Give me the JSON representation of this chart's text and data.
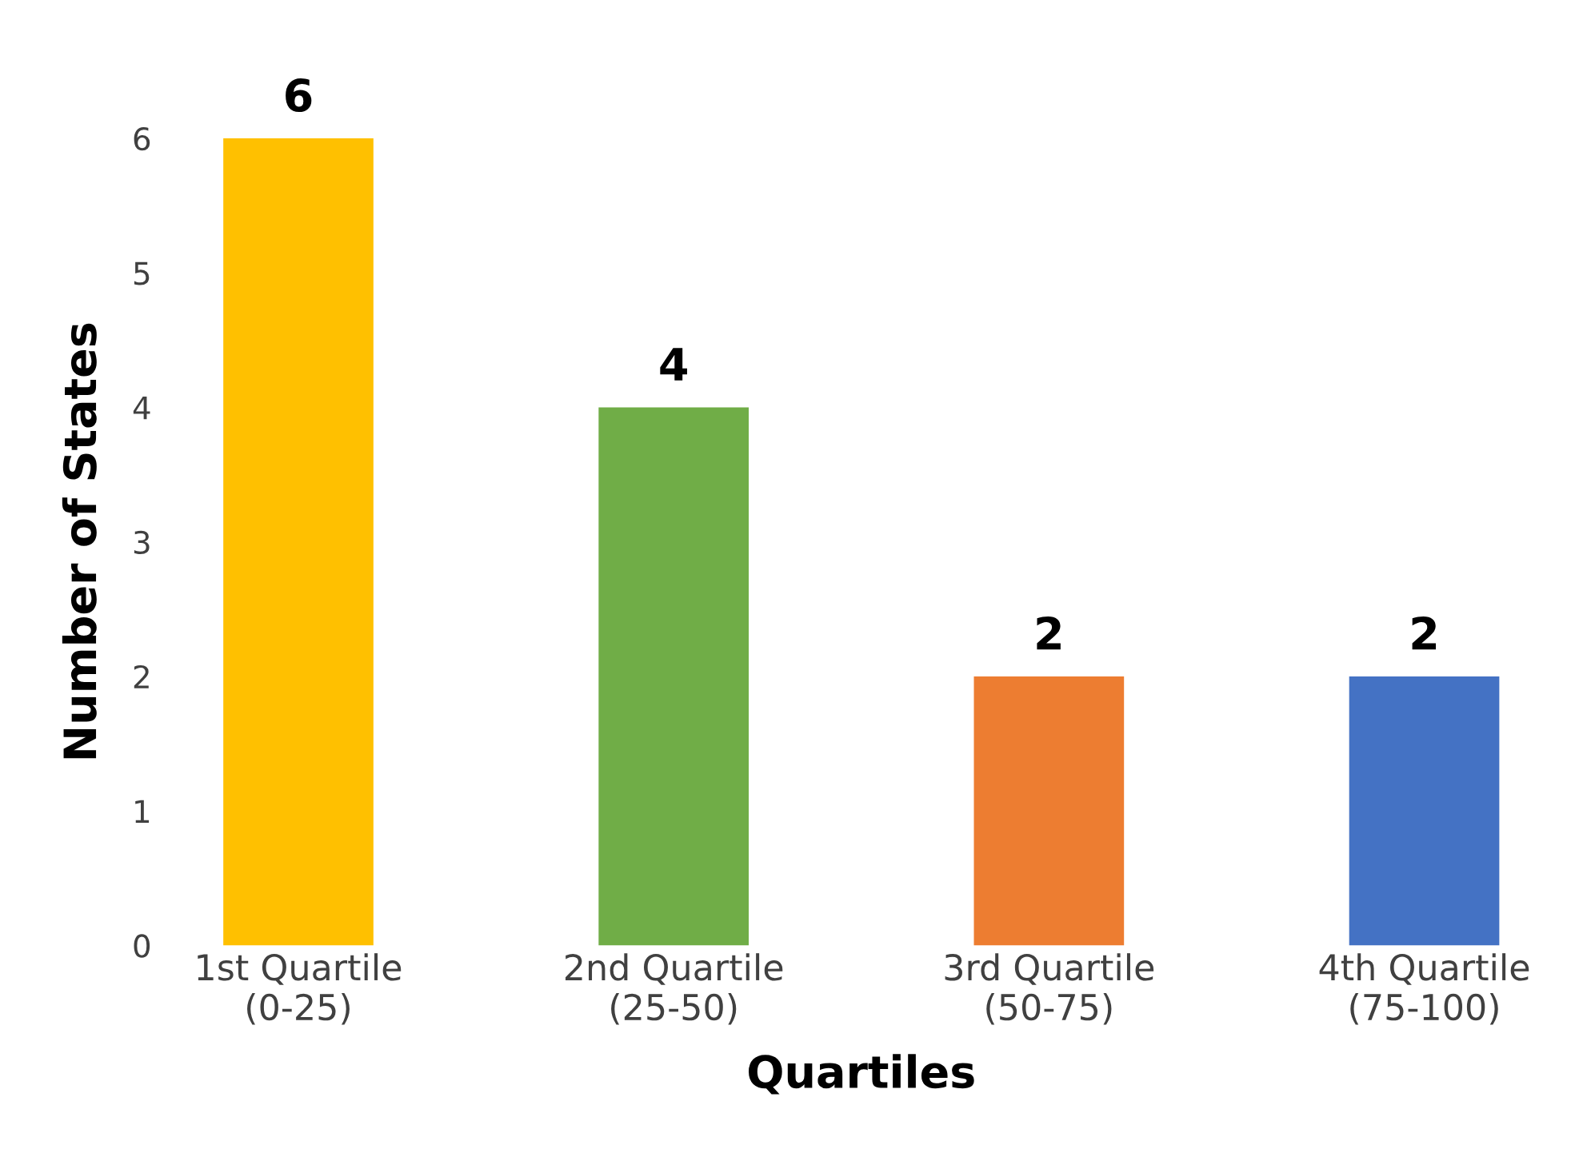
{
  "chart_data": {
    "type": "bar",
    "xlabel": "Quartiles",
    "ylabel": "Number of States",
    "categories": [
      "1st Quartile\n(0-25)",
      "2nd Quartile\n(25-50)",
      "3rd Quartile\n(50-75)",
      "4th Quartile\n(75-100)"
    ],
    "values": [
      6,
      4,
      2,
      2
    ],
    "colors": [
      "#ffc000",
      "#70ad47",
      "#ed7d31",
      "#4472c4"
    ],
    "ylim": [
      0,
      6
    ],
    "yticks": [
      0,
      1,
      2,
      3,
      4,
      5,
      6
    ],
    "data_labels": true,
    "grid": false
  }
}
